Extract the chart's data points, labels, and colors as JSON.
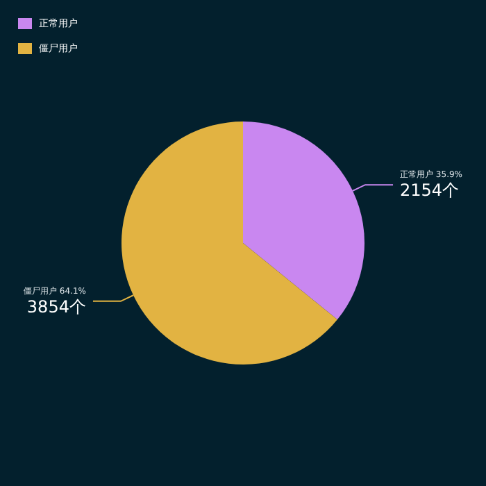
{
  "chart_data": {
    "type": "pie",
    "categories": [
      "正常用户",
      "僵尸用户"
    ],
    "values": [
      2154,
      3854
    ],
    "colors": [
      "#c987f0",
      "#e2b342"
    ],
    "value_labels": [
      "35.9%\n2154个",
      "64.1%\n3854个"
    ],
    "legend": "top left"
  }
}
